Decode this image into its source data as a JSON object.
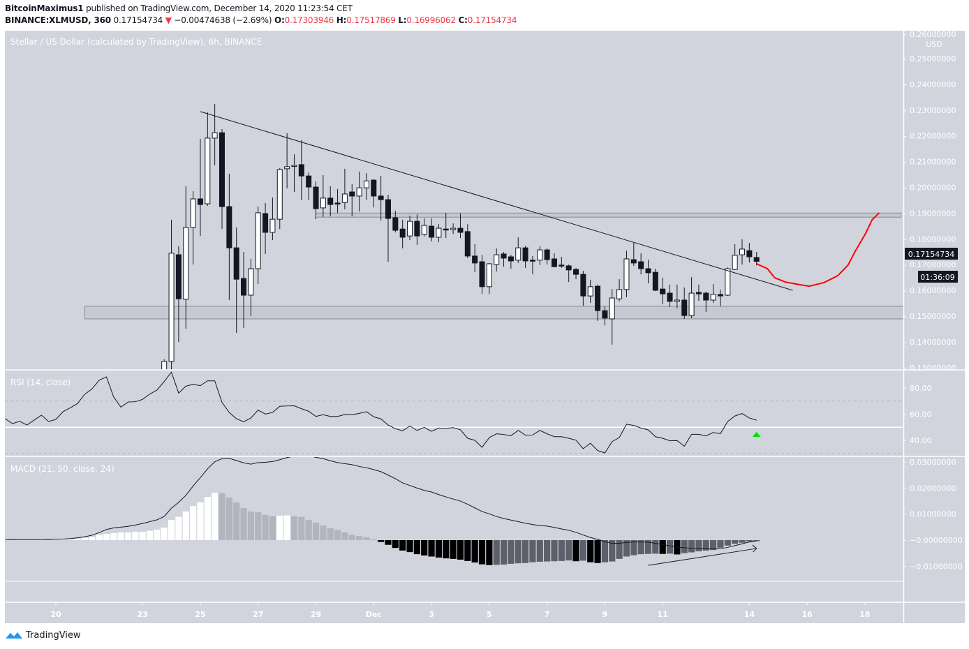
{
  "header": {
    "author": "BitcoinMaximus1",
    "published_text": " published on TradingView.com, December 14, 2020 11:23:54 CET",
    "symbol": "BINANCE:XLMUSD, 360",
    "last_price": "0.17154734",
    "change_icon": "down-triangle-icon",
    "change": "−0.00474638 (−2.69%)",
    "o_label": "O:",
    "o_value": "0.17303946",
    "h_label": "H:",
    "h_value": "0.17517869",
    "l_label": "L:",
    "l_value": "0.16996062",
    "c_label": "C:",
    "c_value": "0.17154734"
  },
  "colors": {
    "background": "#d1d4dc",
    "up_candle": "#ffffff",
    "down_candle": "#131722",
    "projection": "#ff0000",
    "signal_arrow": "#00e000",
    "hist_up_growing": "#ffffff",
    "hist_up_falling": "#b2b5be",
    "hist_down_falling": "#000000",
    "hist_down_rising": "#5d606b",
    "brand": "#2196f3"
  },
  "chart_data": {
    "type": "candlestick",
    "title": "Stellar / US Dollar (calculated by TradingView), 6h, BINANCE",
    "currency": "USD",
    "interval_hours": 6,
    "first_candle": "2020-11-23 18:00",
    "ohlc": [
      [
        0.129,
        0.1335,
        0.1285,
        0.1327
      ],
      [
        0.1327,
        0.1877,
        0.125,
        0.1747
      ],
      [
        0.1741,
        0.1774,
        0.1402,
        0.157
      ],
      [
        0.1568,
        0.2007,
        0.1454,
        0.1847
      ],
      [
        0.1847,
        0.1988,
        0.1703,
        0.1958
      ],
      [
        0.1958,
        0.2191,
        0.1814,
        0.1936
      ],
      [
        0.1939,
        0.2294,
        0.1931,
        0.2194
      ],
      [
        0.2194,
        0.2327,
        0.2088,
        0.2215
      ],
      [
        0.2215,
        0.2229,
        0.1841,
        0.1928
      ],
      [
        0.1928,
        0.2056,
        0.1565,
        0.1768
      ],
      [
        0.1768,
        0.1847,
        0.1438,
        0.1646
      ],
      [
        0.1649,
        0.1752,
        0.1457,
        0.1584
      ],
      [
        0.1584,
        0.1725,
        0.1503,
        0.1687
      ],
      [
        0.1687,
        0.1928,
        0.1627,
        0.1904
      ],
      [
        0.1901,
        0.1942,
        0.1744,
        0.1828
      ],
      [
        0.1828,
        0.1963,
        0.1798,
        0.1879
      ],
      [
        0.1879,
        0.2077,
        0.1841,
        0.2072
      ],
      [
        0.2075,
        0.2213,
        0.1999,
        0.2083
      ],
      [
        0.2085,
        0.2131,
        0.1985,
        0.2088
      ],
      [
        0.2091,
        0.2186,
        0.1953,
        0.2047
      ],
      [
        0.2047,
        0.2061,
        0.1953,
        0.2004
      ],
      [
        0.2004,
        0.2026,
        0.1879,
        0.192
      ],
      [
        0.1923,
        0.205,
        0.1888,
        0.1961
      ],
      [
        0.1961,
        0.2007,
        0.189,
        0.1936
      ],
      [
        0.1942,
        0.1996,
        0.1904,
        0.1939
      ],
      [
        0.1944,
        0.2075,
        0.1917,
        0.1977
      ],
      [
        0.1985,
        0.2015,
        0.189,
        0.1969
      ],
      [
        0.1969,
        0.2064,
        0.1909,
        0.2001
      ],
      [
        0.2001,
        0.2058,
        0.1953,
        0.2028
      ],
      [
        0.2031,
        0.2034,
        0.1925,
        0.1969
      ],
      [
        0.1969,
        0.2047,
        0.1874,
        0.1955
      ],
      [
        0.1955,
        0.1974,
        0.1714,
        0.1882
      ],
      [
        0.1885,
        0.1912,
        0.1828,
        0.1836
      ],
      [
        0.1841,
        0.1877,
        0.1766,
        0.1809
      ],
      [
        0.1814,
        0.1893,
        0.1798,
        0.1871
      ],
      [
        0.1871,
        0.1898,
        0.1779,
        0.1814
      ],
      [
        0.182,
        0.1882,
        0.1812,
        0.1855
      ],
      [
        0.1852,
        0.1882,
        0.1793,
        0.1809
      ],
      [
        0.1809,
        0.186,
        0.179,
        0.1844
      ],
      [
        0.1841,
        0.1904,
        0.1806,
        0.1839
      ],
      [
        0.1839,
        0.1863,
        0.1822,
        0.1844
      ],
      [
        0.1844,
        0.1901,
        0.1806,
        0.1828
      ],
      [
        0.1831,
        0.186,
        0.1728,
        0.1736
      ],
      [
        0.1736,
        0.1782,
        0.1673,
        0.1709
      ],
      [
        0.1714,
        0.1741,
        0.1589,
        0.1617
      ],
      [
        0.1617,
        0.1709,
        0.1589,
        0.1706
      ],
      [
        0.1703,
        0.1766,
        0.1676,
        0.1741
      ],
      [
        0.1744,
        0.1752,
        0.1695,
        0.1728
      ],
      [
        0.1733,
        0.1741,
        0.1687,
        0.1717
      ],
      [
        0.172,
        0.1809,
        0.1709,
        0.1768
      ],
      [
        0.1768,
        0.1776,
        0.169,
        0.1717
      ],
      [
        0.172,
        0.1736,
        0.1665,
        0.1719
      ],
      [
        0.172,
        0.1774,
        0.1701,
        0.176
      ],
      [
        0.176,
        0.1766,
        0.1703,
        0.1722
      ],
      [
        0.1725,
        0.1747,
        0.1692,
        0.1695
      ],
      [
        0.1701,
        0.1733,
        0.169,
        0.1698
      ],
      [
        0.1698,
        0.1703,
        0.1635,
        0.1682
      ],
      [
        0.1684,
        0.169,
        0.1646,
        0.1665
      ],
      [
        0.1665,
        0.1679,
        0.1543,
        0.1581
      ],
      [
        0.1581,
        0.1644,
        0.1554,
        0.1617
      ],
      [
        0.1619,
        0.1625,
        0.1484,
        0.1524
      ],
      [
        0.1524,
        0.1541,
        0.1467,
        0.1495
      ],
      [
        0.1492,
        0.1608,
        0.1392,
        0.1573
      ],
      [
        0.157,
        0.1646,
        0.156,
        0.1606
      ],
      [
        0.1606,
        0.1757,
        0.1576,
        0.1725
      ],
      [
        0.1722,
        0.1787,
        0.1698,
        0.1709
      ],
      [
        0.1714,
        0.1747,
        0.1665,
        0.1687
      ],
      [
        0.1687,
        0.1722,
        0.163,
        0.1671
      ],
      [
        0.1673,
        0.1687,
        0.16,
        0.1603
      ],
      [
        0.1608,
        0.1652,
        0.1549,
        0.1589
      ],
      [
        0.1592,
        0.1625,
        0.1538,
        0.156
      ],
      [
        0.156,
        0.1625,
        0.1533,
        0.1565
      ],
      [
        0.1565,
        0.1614,
        0.1492,
        0.1505
      ],
      [
        0.1505,
        0.1654,
        0.1495,
        0.1592
      ],
      [
        0.1595,
        0.1625,
        0.1562,
        0.1589
      ],
      [
        0.1592,
        0.1598,
        0.1519,
        0.1565
      ],
      [
        0.1565,
        0.1627,
        0.1554,
        0.1587
      ],
      [
        0.1587,
        0.1606,
        0.1541,
        0.1581
      ],
      [
        0.1584,
        0.1692,
        0.1581,
        0.1687
      ],
      [
        0.1684,
        0.1782,
        0.1682,
        0.1739
      ],
      [
        0.1741,
        0.1801,
        0.1703,
        0.1763
      ],
      [
        0.1757,
        0.1787,
        0.1711,
        0.1733
      ],
      [
        0.17304,
        0.17518,
        0.16996,
        0.17155
      ]
    ],
    "price_axis": {
      "labels": [
        "0.26000000",
        "0.25000000",
        "0.24000000",
        "0.23000000",
        "0.22000000",
        "0.21000000",
        "0.20000000",
        "0.19000000",
        "0.18000000",
        "0.17000000",
        "0.16000000",
        "0.15000000",
        "0.14000000",
        "0.13000000"
      ],
      "values": [
        0.26,
        0.25,
        0.24,
        0.23,
        0.22,
        0.21,
        0.2,
        0.19,
        0.18,
        0.17,
        0.16,
        0.15,
        0.14,
        0.13
      ],
      "unit_label": "USD"
    },
    "last_price_label": "0.17154734",
    "countdown_label": "01:36:09",
    "time_axis": {
      "labels": [
        "20",
        "23",
        "25",
        "27",
        "29",
        "Dec",
        "3",
        "5",
        "7",
        "9",
        "11",
        "14",
        "16",
        "18"
      ],
      "dates": [
        "2020-11-20",
        "2020-11-23",
        "2020-11-25",
        "2020-11-27",
        "2020-11-29",
        "2020-12-01",
        "2020-12-03",
        "2020-12-05",
        "2020-12-07",
        "2020-12-09",
        "2020-12-11",
        "2020-12-14",
        "2020-12-16",
        "2020-12-18"
      ]
    },
    "drawings": {
      "resistance_zone": {
        "from": "2020-11-29 00:00",
        "to": "2020-12-19 06:00",
        "low": 0.1887,
        "high": 0.1903
      },
      "support_zone": {
        "from": "2020-11-21 00:00",
        "to": "2020-12-20 00:00",
        "low": 0.1492,
        "high": 0.1541
      },
      "trendline": {
        "from": [
          "2020-11-25 00:00",
          0.2297
        ],
        "to": [
          "2020-12-15 12:00",
          0.1603
        ]
      },
      "projection": [
        [
          "2020-12-14 06:00",
          0.1706
        ],
        [
          "2020-12-14 15:00",
          0.1687
        ],
        [
          "2020-12-14 21:00",
          0.1652
        ],
        [
          "2020-12-15 06:00",
          0.1635
        ],
        [
          "2020-12-15 17:30",
          0.1625
        ],
        [
          "2020-12-16 02:00",
          0.1619
        ],
        [
          "2020-12-16 14:00",
          0.1633
        ],
        [
          "2020-12-17 01:30",
          0.166
        ],
        [
          "2020-12-17 10:00",
          0.1701
        ],
        [
          "2020-12-17 16:00",
          0.1755
        ],
        [
          "2020-12-18 00:30",
          0.1823
        ],
        [
          "2020-12-18 06:00",
          0.1877
        ],
        [
          "2020-12-18 12:00",
          0.1904
        ]
      ]
    },
    "indicator_start": "2020-11-18 06:00",
    "rsi": {
      "title": "RSI (14, close)",
      "levels": {
        "upper": 70,
        "middle": 50,
        "lower": 30
      },
      "axis_labels": [
        "80.00",
        "60.00",
        "40.00"
      ],
      "axis_values": [
        80,
        60,
        40
      ],
      "signal": {
        "date": "2020-12-14 06:00",
        "icon": "up-triangle-icon"
      },
      "values": [
        56.5,
        52.8,
        54.6,
        51.7,
        55.5,
        59.2,
        54.4,
        56,
        61.9,
        64.9,
        68.1,
        75.2,
        79.3,
        86,
        88.5,
        73.2,
        65.4,
        69.3,
        69.5,
        71.3,
        75.4,
        78.4,
        85,
        92.1,
        76.1,
        81.4,
        82.8,
        81.8,
        85.5,
        85.5,
        69,
        61.3,
        56.5,
        54.2,
        57.1,
        63.1,
        60.1,
        61.3,
        66,
        66.3,
        66.4,
        64.2,
        62.2,
        58.3,
        59.6,
        58.3,
        58.3,
        59.7,
        59.6,
        60.6,
        61.9,
        58,
        56.4,
        51.7,
        48.9,
        47.3,
        50.9,
        47.6,
        49.9,
        46.9,
        49.4,
        49.2,
        49.7,
        48.1,
        41.6,
        40,
        34.7,
        42.1,
        45,
        44.5,
        43.5,
        47.6,
        44,
        44.1,
        47.6,
        45,
        42.8,
        42.8,
        41.6,
        40.1,
        33.6,
        37.8,
        32.2,
        30.4,
        39,
        42.2,
        52.3,
        51.4,
        49.4,
        48,
        42.8,
        41.6,
        39.7,
        39.8,
        35.5,
        44.6,
        44.6,
        43.4,
        46,
        45.1,
        54.4,
        58.6,
        60.5,
        57.1,
        55.4
      ]
    },
    "macd": {
      "title": "MACD (21, 50, close, 24)",
      "axis_labels": [
        "0.03000000",
        "0.02000000",
        "0.01000000",
        "−0.00000000",
        "−0.01000000"
      ],
      "axis_values": [
        0.03,
        0.02,
        0.01,
        0,
        -0.01
      ],
      "line": [
        0.0002,
        0.0002,
        0.0002,
        0.0002,
        0.0002,
        0.0002,
        0.0003,
        0.0003,
        0.0004,
        0.0006,
        0.0009,
        0.0013,
        0.0019,
        0.0029,
        0.0041,
        0.0047,
        0.005,
        0.0053,
        0.0058,
        0.0064,
        0.0071,
        0.0078,
        0.0091,
        0.0123,
        0.0145,
        0.0172,
        0.0208,
        0.024,
        0.0274,
        0.0301,
        0.0313,
        0.0314,
        0.0306,
        0.0297,
        0.0292,
        0.0298,
        0.0299,
        0.0302,
        0.0309,
        0.0317,
        0.0323,
        0.0326,
        0.0324,
        0.0318,
        0.0313,
        0.0305,
        0.0298,
        0.0294,
        0.029,
        0.0283,
        0.0278,
        0.0271,
        0.0263,
        0.025,
        0.0236,
        0.022,
        0.021,
        0.02,
        0.0191,
        0.0185,
        0.0175,
        0.0166,
        0.0158,
        0.015,
        0.0138,
        0.0124,
        0.011,
        0.0101,
        0.0091,
        0.0083,
        0.0077,
        0.0071,
        0.0065,
        0.006,
        0.0056,
        0.0054,
        0.0049,
        0.0043,
        0.0038,
        0.003,
        0.002,
        0.001,
        0.0003,
        -0.0006,
        -0.0012,
        -0.0012,
        -0.0009,
        -0.0007,
        -0.0007,
        -0.0008,
        -0.0012,
        -0.0017,
        -0.0022,
        -0.0027,
        -0.0029,
        -0.0031,
        -0.0032,
        -0.0033,
        -0.0034,
        -0.0033,
        -0.0028,
        -0.0021,
        -0.0014,
        -0.0007,
        -0.0003
      ],
      "histogram": [
        0.00045,
        0.00027,
        0.00027,
        0.00027,
        0.00027,
        0.00036,
        0.00027,
        0.00027,
        0.00027,
        0.00027,
        0.00054,
        0.00089,
        0.00116,
        0.00197,
        0.00241,
        0.00268,
        0.00295,
        0.00295,
        0.00322,
        0.00322,
        0.00358,
        0.00402,
        0.00483,
        0.00778,
        0.00894,
        0.011,
        0.0131,
        0.0145,
        0.0166,
        0.0182,
        0.018,
        0.0164,
        0.0145,
        0.0123,
        0.011,
        0.0107,
        0.0097,
        0.0092,
        0.0094,
        0.0095,
        0.0092,
        0.0089,
        0.0078,
        0.0067,
        0.0056,
        0.0046,
        0.0039,
        0.003,
        0.0021,
        0.0016,
        0.0011,
        0.0003,
        -0.0007,
        -0.0018,
        -0.003,
        -0.004,
        -0.0046,
        -0.0054,
        -0.0059,
        -0.0063,
        -0.0067,
        -0.007,
        -0.0072,
        -0.0075,
        -0.008,
        -0.0086,
        -0.0093,
        -0.0096,
        -0.0095,
        -0.0094,
        -0.0091,
        -0.0089,
        -0.0088,
        -0.0085,
        -0.0083,
        -0.0082,
        -0.0081,
        -0.008,
        -0.0078,
        -0.0081,
        -0.0079,
        -0.0085,
        -0.0088,
        -0.0085,
        -0.0082,
        -0.0072,
        -0.0063,
        -0.0058,
        -0.0054,
        -0.0053,
        -0.0052,
        -0.0053,
        -0.0052,
        -0.0055,
        -0.005,
        -0.0047,
        -0.0043,
        -0.004,
        -0.0038,
        -0.0029,
        -0.0021,
        -0.0014,
        -0.001,
        -0.0005,
        -0.0004
      ],
      "divergence_arrow": {
        "from": [
          "2020-12-10 12:00",
          -0.0097
        ],
        "to": [
          "2020-12-14 06:00",
          -0.0032
        ]
      }
    }
  },
  "footer": {
    "brand": "TradingView",
    "logo_icon": "tradingview-logo-icon"
  }
}
